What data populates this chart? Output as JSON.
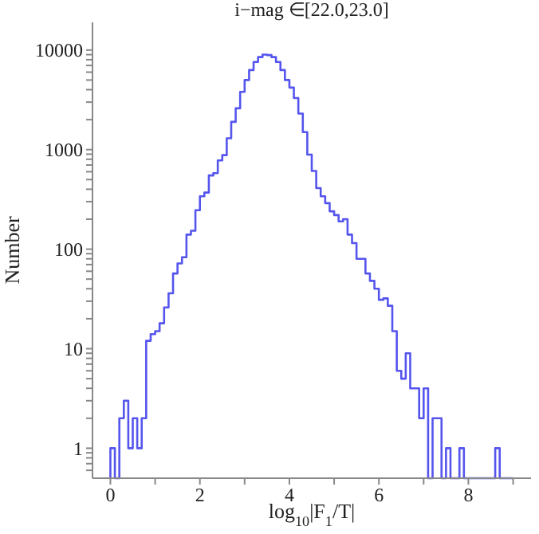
{
  "chart_data": {
    "type": "histogram",
    "title": "i−mag ∈[22.0,23.0]",
    "xlabel": "log$_{10}$|F$_{1}$/T|",
    "ylabel": "Number",
    "color": "#5555ee",
    "log": "y",
    "bins": [
      0,
      0.1,
      0.2,
      0.3,
      0.4,
      0.5,
      0.6,
      0.7,
      0.8,
      0.9,
      1,
      1.1,
      1.2,
      1.3,
      1.4,
      1.5,
      1.6,
      1.7,
      1.8,
      1.9,
      2,
      2.1,
      2.2,
      2.3,
      2.4,
      2.5,
      2.6,
      2.7,
      2.8,
      2.9,
      3,
      3.1,
      3.2,
      3.3,
      3.4,
      3.5,
      3.6,
      3.7,
      3.8,
      3.9,
      4,
      4.1,
      4.2,
      4.3,
      4.4,
      4.5,
      4.6,
      4.7,
      4.8,
      4.9,
      5,
      5.1,
      5.2,
      5.3,
      5.4,
      5.5,
      5.6,
      5.7,
      5.8,
      5.9,
      6,
      6.1,
      6.2,
      6.3,
      6.4,
      6.5,
      6.6,
      6.7,
      6.8,
      6.9,
      7,
      7.1,
      7.2,
      7.3,
      7.4,
      7.5,
      7.6,
      7.7,
      7.8,
      7.9,
      8,
      8.1,
      8.2,
      8.3,
      8.4,
      8.5,
      8.6,
      8.7,
      8.8,
      8.9,
      9
    ],
    "values": [
      1,
      null,
      2,
      3,
      1,
      2,
      1,
      2,
      12,
      14,
      15,
      18,
      26,
      36,
      57,
      72,
      83,
      140,
      153,
      246,
      340,
      370,
      550,
      580,
      780,
      880,
      1300,
      1900,
      2600,
      3800,
      5000,
      6300,
      7600,
      8500,
      9000,
      8900,
      8500,
      7600,
      6300,
      5000,
      4200,
      3300,
      2300,
      1500,
      890,
      610,
      410,
      340,
      290,
      240,
      220,
      190,
      200,
      140,
      115,
      80,
      80,
      57,
      48,
      40,
      31,
      32,
      27,
      15,
      6,
      5,
      9,
      4,
      4,
      2,
      4,
      null,
      2,
      2,
      null,
      1,
      null,
      null,
      1,
      null,
      null,
      null,
      null,
      null,
      null,
      null,
      1,
      null,
      null,
      null
    ],
    "xlim": [
      -0.4,
      9.4
    ],
    "xticks": [
      0,
      {
        "value": 1,
        "label": null
      },
      2,
      {
        "value": 3,
        "label": null
      },
      4,
      {
        "value": 5,
        "label": null
      },
      6,
      {
        "value": 7,
        "label": null
      },
      8,
      {
        "value": 9,
        "label": null
      }
    ],
    "ylim": [
      0.5,
      19000
    ],
    "yticks": [
      {
        "value": 0.6,
        "label": null
      },
      {
        "value": 0.7,
        "label": null
      },
      {
        "value": 0.8,
        "label": null
      },
      {
        "value": 0.9,
        "label": null
      },
      1,
      {
        "value": 2,
        "label": null
      },
      {
        "value": 3,
        "label": null
      },
      {
        "value": 4,
        "label": null
      },
      {
        "value": 5,
        "label": null
      },
      {
        "value": 6,
        "label": null
      },
      {
        "value": 7,
        "label": null
      },
      {
        "value": 8,
        "label": null
      },
      {
        "value": 9,
        "label": null
      },
      10,
      {
        "value": 20,
        "label": null
      },
      {
        "value": 30,
        "label": null
      },
      {
        "value": 40,
        "label": null
      },
      {
        "value": 50,
        "label": null
      },
      {
        "value": 60,
        "label": null
      },
      {
        "value": 70,
        "label": null
      },
      {
        "value": 80,
        "label": null
      },
      {
        "value": 90,
        "label": null
      },
      100,
      {
        "value": 200,
        "label": null
      },
      {
        "value": 300,
        "label": null
      },
      {
        "value": 400,
        "label": null
      },
      {
        "value": 500,
        "label": null
      },
      {
        "value": 600,
        "label": null
      },
      {
        "value": 700,
        "label": null
      },
      {
        "value": 800,
        "label": null
      },
      {
        "value": 900,
        "label": null
      },
      1000,
      {
        "value": 2000,
        "label": null
      },
      {
        "value": 3000,
        "label": null
      },
      {
        "value": 4000,
        "label": null
      },
      {
        "value": 5000,
        "label": null
      },
      {
        "value": 6000,
        "label": null
      },
      {
        "value": 7000,
        "label": null
      },
      {
        "value": 8000,
        "label": null
      },
      {
        "value": 9000,
        "label": null
      },
      10000
    ]
  }
}
